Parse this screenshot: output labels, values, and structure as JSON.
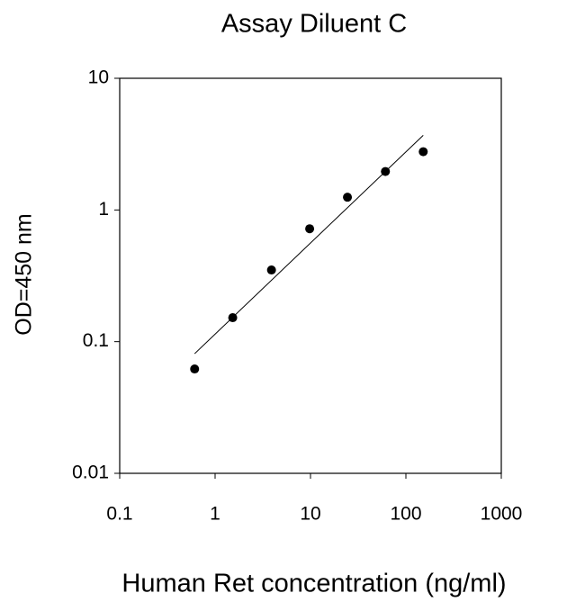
{
  "chart_data": {
    "type": "scatter",
    "title": "Assay Diluent C",
    "x_label": "Human Ret concentration (ng/ml)",
    "y_label": "OD=450 nm",
    "x": [
      0.61,
      1.53,
      3.9,
      9.8,
      24.4,
      61,
      152
    ],
    "series": [
      {
        "color": "#000000",
        "values": [
          0.062,
          0.152,
          0.35,
          0.72,
          1.25,
          1.96,
          2.77
        ]
      }
    ],
    "trendline": {
      "x": [
        0.61,
        152
      ],
      "values": [
        0.081,
        3.69
      ],
      "color": "#000000"
    },
    "xlim": [
      0.1,
      1000
    ],
    "xticks": [
      0.1,
      1,
      10,
      100,
      1000
    ],
    "ylim": [
      0.01,
      10
    ],
    "yticks": [
      0.01,
      0.1,
      1,
      10
    ],
    "xscale": "log",
    "yscale": "log",
    "grid": false
  }
}
